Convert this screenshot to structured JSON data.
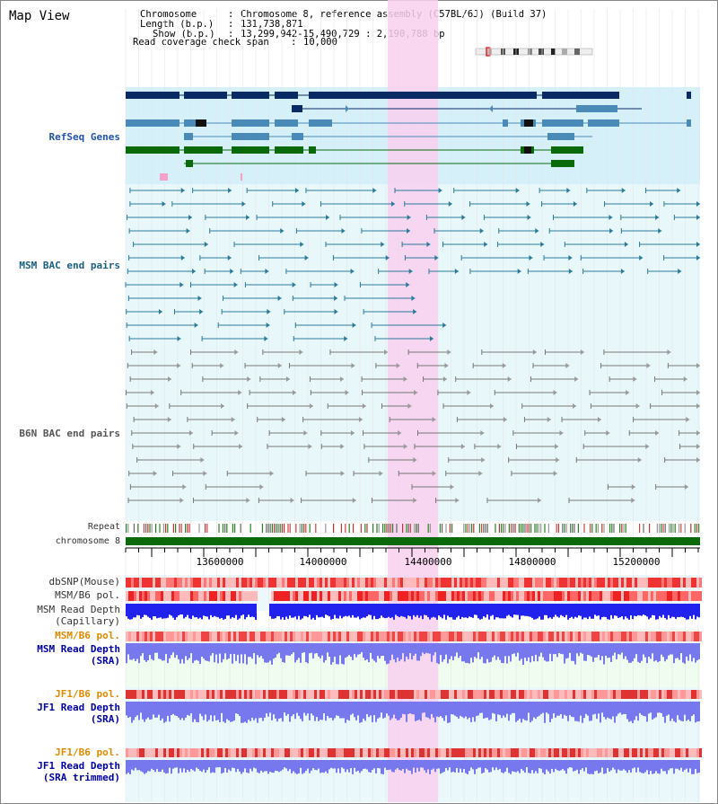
{
  "page_title": "Map View",
  "info": {
    "chromosome_key": "Chromosome",
    "chromosome_val": "Chromosome 8, reference assembly (C57BL/6J) (Build 37)",
    "length_key": "Length (b.p.)",
    "length_val": "131,738,871",
    "show_key": "Show (b.p.)",
    "show_val": "13,299,942-15,490,729 : 2,190,788 bp",
    "span_key": "Read coverage check span",
    "span_val": "10,000"
  },
  "tracks": {
    "refseq": "RefSeq Genes",
    "msm_bac": "MSM BAC end pairs",
    "b6n_bac": "B6N BAC end pairs",
    "repeat": "Repeat",
    "chromosome": "chromosome 8",
    "dbsnp": "dbSNP(Mouse)",
    "msm_b6_pol_1": "MSM/B6 pol.",
    "msm_read_depth_cap_1": "MSM Read Depth",
    "msm_read_depth_cap_2": "(Capillary)",
    "msm_b6_pol_2": "MSM/B6 pol.",
    "msm_read_depth_sra_1": "MSM Read Depth",
    "msm_read_depth_sra_2": "(SRA)",
    "jf1_b6_pol_1": "JF1/B6 pol.",
    "jf1_read_depth_sra_1": "JF1 Read Depth",
    "jf1_read_depth_sra_2": "(SRA)",
    "jf1_b6_pol_2": "JF1/B6 pol.",
    "jf1_read_depth_trim_1": "JF1 Read Depth",
    "jf1_read_depth_trim_2": "(SRA trimmed)"
  },
  "axis": {
    "ticks": [
      "13600000",
      "14000000",
      "14400000",
      "14800000",
      "15200000"
    ]
  },
  "colors": {
    "highlight": "#f8d0ee",
    "refseq_bg": "#d6f0fa",
    "bac_bg": "#e8f8fa",
    "gene_navy": "#0a2a66",
    "gene_steel": "#4a8ab8",
    "gene_green": "#0a6a0a",
    "msm_line": "#2a7a9a",
    "b6n_line": "#777777",
    "depth_blue": "#2222ee",
    "depth_light": "#7777ee",
    "pol_red": "#ee3333"
  }
}
